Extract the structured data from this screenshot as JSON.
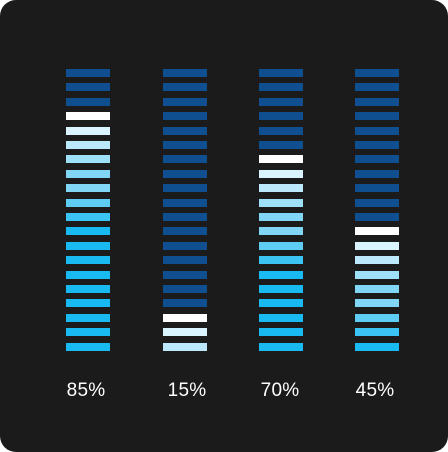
{
  "meters": [
    {
      "value": 85,
      "label": "85%"
    },
    {
      "value": 15,
      "label": "15%"
    },
    {
      "value": 70,
      "label": "70%"
    },
    {
      "value": 45,
      "label": "45%"
    }
  ],
  "segments_per_meter": 20,
  "colors": {
    "panel_background": "#1b1b1b",
    "label_text": "#ffffff",
    "inactive_segment": "#0f4f8f",
    "peak_segment": "#ffffff",
    "near_peak_segment": "#d9f3ff",
    "mid_segment": "#80d6f4",
    "base_segment": "#19b9f2"
  }
}
